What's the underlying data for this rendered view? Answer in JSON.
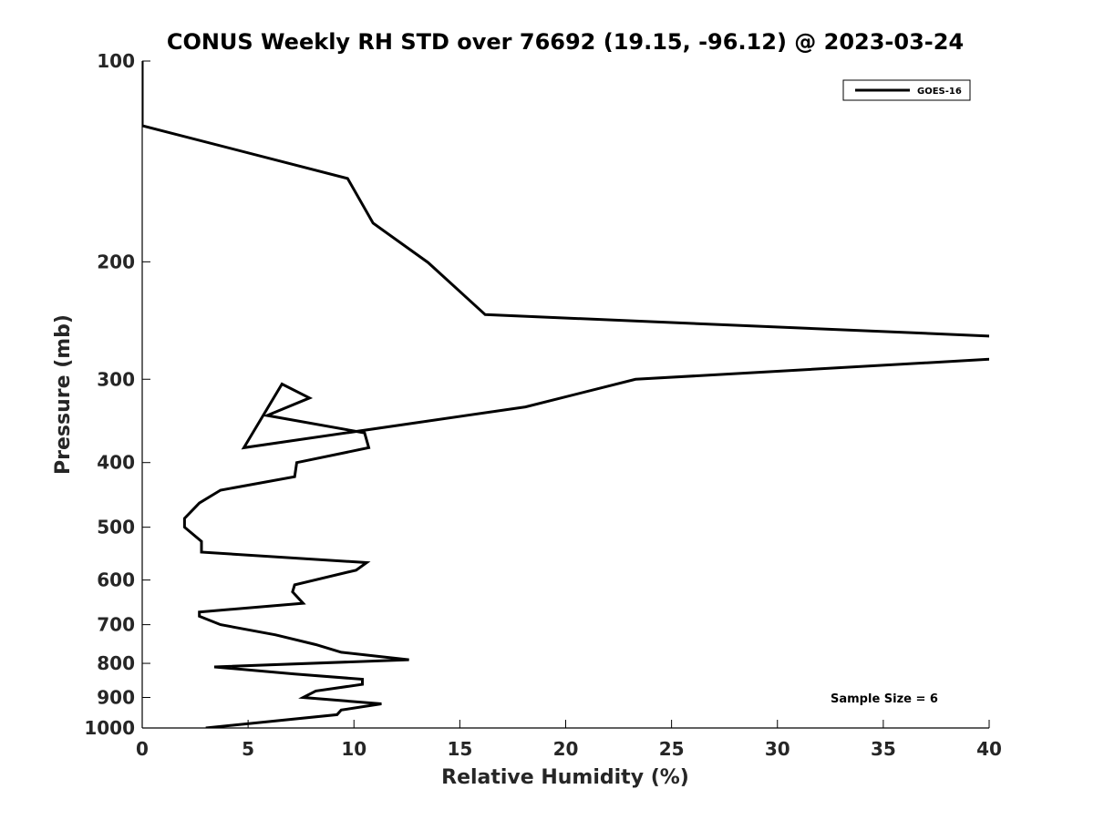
{
  "chart_data": {
    "type": "line",
    "title": "CONUS Weekly RH STD over 76692 (19.15, -96.12) @ 2023-03-24",
    "xlabel": "Relative Humidity (%)",
    "ylabel": "Pressure (mb)",
    "xlim": [
      0,
      40
    ],
    "ylim": [
      100,
      1000
    ],
    "y_scale": "log",
    "y_reversed": true,
    "grid": false,
    "legend_position": "top-right",
    "x_ticks": [
      0,
      5,
      10,
      15,
      20,
      25,
      30,
      35,
      40
    ],
    "y_ticks": [
      100,
      200,
      300,
      400,
      500,
      600,
      700,
      800,
      900,
      1000
    ],
    "series": [
      {
        "name": "GOES-16",
        "color": "#000000",
        "points": [
          [
            0,
            100
          ],
          [
            0,
            125
          ],
          [
            9.7,
            150
          ],
          [
            10.9,
            175
          ],
          [
            13.5,
            200.5
          ],
          [
            16.2,
            240
          ],
          [
            42,
            260
          ],
          [
            40,
            280
          ],
          [
            23.3,
            300
          ],
          [
            18.1,
            330
          ],
          [
            4.8,
            380
          ],
          [
            6.6,
            305
          ],
          [
            7.9,
            320
          ],
          [
            5.9,
            340
          ],
          [
            10.5,
            361
          ],
          [
            10.7,
            380
          ],
          [
            7.3,
            400
          ],
          [
            7.2,
            420
          ],
          [
            3.7,
            440
          ],
          [
            2.7,
            460
          ],
          [
            2.0,
            485
          ],
          [
            2.0,
            500
          ],
          [
            2.8,
            525
          ],
          [
            2.8,
            545
          ],
          [
            10.6,
            565
          ],
          [
            10.1,
            580
          ],
          [
            7.2,
            610
          ],
          [
            7.1,
            625
          ],
          [
            7.6,
            650
          ],
          [
            2.7,
            670
          ],
          [
            2.7,
            680
          ],
          [
            3.7,
            700
          ],
          [
            6.3,
            725
          ],
          [
            8.2,
            750
          ],
          [
            9.4,
            770
          ],
          [
            12.6,
            790
          ],
          [
            3.4,
            810
          ],
          [
            7.2,
            830
          ],
          [
            10.4,
            845
          ],
          [
            10.4,
            860
          ],
          [
            8.2,
            880
          ],
          [
            7.6,
            900
          ],
          [
            11.3,
            920
          ],
          [
            9.4,
            940
          ],
          [
            9.2,
            955
          ],
          [
            3.0,
            1000
          ]
        ]
      }
    ]
  },
  "annotation": "Sample Size = 6"
}
